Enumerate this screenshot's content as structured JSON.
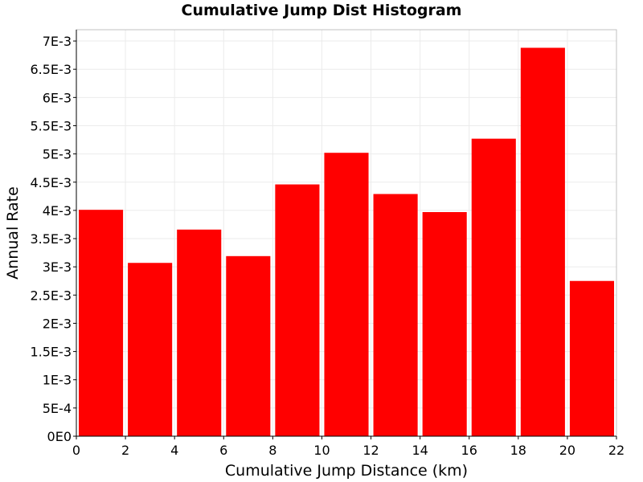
{
  "chart_data": {
    "type": "bar",
    "title": "Cumulative Jump Dist Histogram",
    "xlabel": "Cumulative Jump Distance (km)",
    "ylabel": "Annual Rate",
    "bin_width": 2,
    "x_bin_starts": [
      0,
      2,
      4,
      6,
      8,
      10,
      12,
      14,
      16,
      18,
      20
    ],
    "values": [
      0.00401,
      0.00307,
      0.00366,
      0.00319,
      0.00446,
      0.00502,
      0.00429,
      0.00397,
      0.00527,
      0.00688,
      0.00275
    ],
    "xlim": [
      0,
      22
    ],
    "ylim": [
      0,
      0.0072
    ],
    "x_ticks": [
      0,
      2,
      4,
      6,
      8,
      10,
      12,
      14,
      16,
      18,
      20,
      22
    ],
    "x_tick_labels": [
      "0",
      "2",
      "4",
      "6",
      "8",
      "10",
      "12",
      "14",
      "16",
      "18",
      "20",
      "22"
    ],
    "y_ticks": [
      0,
      0.0005,
      0.001,
      0.0015,
      0.002,
      0.0025,
      0.003,
      0.0035,
      0.004,
      0.0045,
      0.005,
      0.0055,
      0.006,
      0.0065,
      0.007
    ],
    "y_tick_labels": [
      "0E0",
      "5E-4",
      "1E-3",
      "1.5E-3",
      "2E-3",
      "2.5E-3",
      "3E-3",
      "3.5E-3",
      "4E-3",
      "4.5E-3",
      "5E-3",
      "5.5E-3",
      "6E-3",
      "6.5E-3",
      "7E-3"
    ],
    "grid": true,
    "bar_color": "#ff0000",
    "grid_color": "#ebebeb",
    "frame_color": "#c0c0c0"
  }
}
